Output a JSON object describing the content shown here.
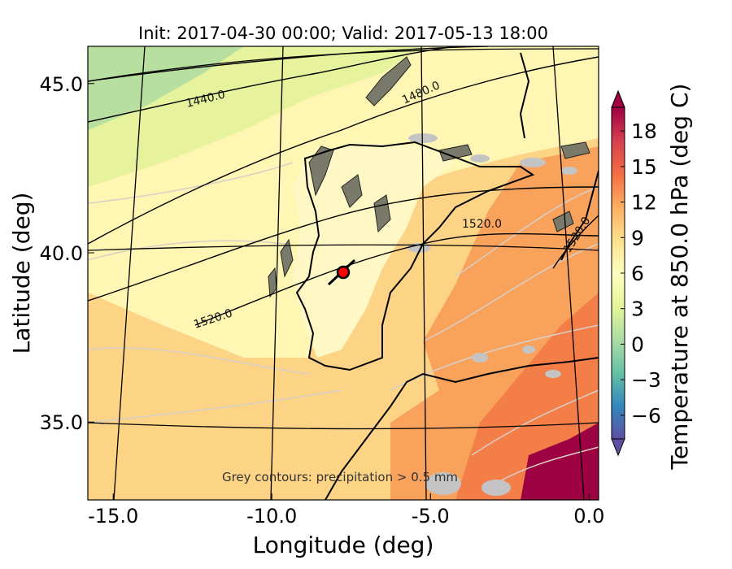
{
  "title": "Init: 2017-04-30 00:00; Valid: 2017-05-13 18:00",
  "xlabel": "Longitude (deg)",
  "ylabel": "Latitude (deg)",
  "x_ticks": [
    {
      "label": "-15.0",
      "value": -15
    },
    {
      "label": "-10.0",
      "value": -10
    },
    {
      "label": "-5.0",
      "value": -5
    },
    {
      "label": "0.0",
      "value": 0
    }
  ],
  "y_ticks": [
    {
      "label": "45.0",
      "value": 45
    },
    {
      "label": "40.0",
      "value": 40
    },
    {
      "label": "35.0",
      "value": 35
    }
  ],
  "x_range": [
    -15.8,
    0.3
  ],
  "y_range": [
    32.7,
    46.1
  ],
  "contour_labels": [
    "1440.0",
    "1480.0",
    "1520.0",
    "1520.0",
    "1520.0"
  ],
  "note": "Grey contours: precipitation > 0.5 mm",
  "colorbar": {
    "label": "Temperature at 850.0 hPa (deg C)",
    "min": -8,
    "max": 20,
    "extend": "both",
    "ticks": [
      {
        "label": "18",
        "value": 18
      },
      {
        "label": "15",
        "value": 15
      },
      {
        "label": "12",
        "value": 12
      },
      {
        "label": "9",
        "value": 9
      },
      {
        "label": "6",
        "value": 6
      },
      {
        "label": "3",
        "value": 3
      },
      {
        "label": "0",
        "value": 0
      },
      {
        "label": "−3",
        "value": -3
      },
      {
        "label": "−6",
        "value": -6
      }
    ],
    "colormap": "Spectral_r"
  },
  "marker": {
    "lon": -7.6,
    "lat": 39.3,
    "color": "#ff0000"
  },
  "colors": {
    "cold": "#a6d8a0",
    "cool": "#e6f29a",
    "mild": "#fff4b0",
    "warm": "#fdd07a",
    "hot": "#f78a4e",
    "very_hot": "#9e0142",
    "land_outline": "#000000",
    "precip": "#c8c8c8"
  }
}
